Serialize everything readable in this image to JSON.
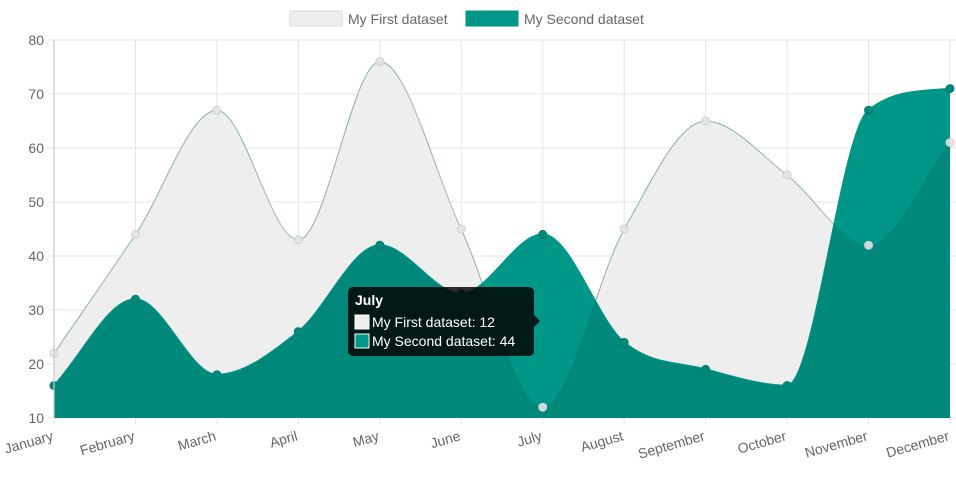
{
  "chart_data": {
    "type": "area",
    "categories": [
      "January",
      "February",
      "March",
      "April",
      "May",
      "June",
      "July",
      "August",
      "September",
      "October",
      "November",
      "December"
    ],
    "ylim": [
      10,
      80
    ],
    "yticks": [
      10,
      20,
      30,
      40,
      50,
      60,
      70,
      80
    ],
    "grid": true,
    "legend_position": "top",
    "series": [
      {
        "name": "My First dataset",
        "values": [
          22,
          44,
          67,
          43,
          76,
          45,
          12,
          45,
          65,
          55,
          42,
          61
        ],
        "fill": "#eeeeee",
        "stroke": "#dddddd",
        "point": "#dddddd"
      },
      {
        "name": "My Second dataset",
        "values": [
          16,
          32,
          18,
          26,
          42,
          33,
          44,
          24,
          19,
          16,
          67,
          71
        ],
        "fill": "#009688",
        "stroke": "#009688",
        "point": "#009688"
      }
    ],
    "tooltip": {
      "title": "July",
      "lines": [
        "My First dataset: 12",
        "My Second dataset: 44"
      ]
    }
  }
}
